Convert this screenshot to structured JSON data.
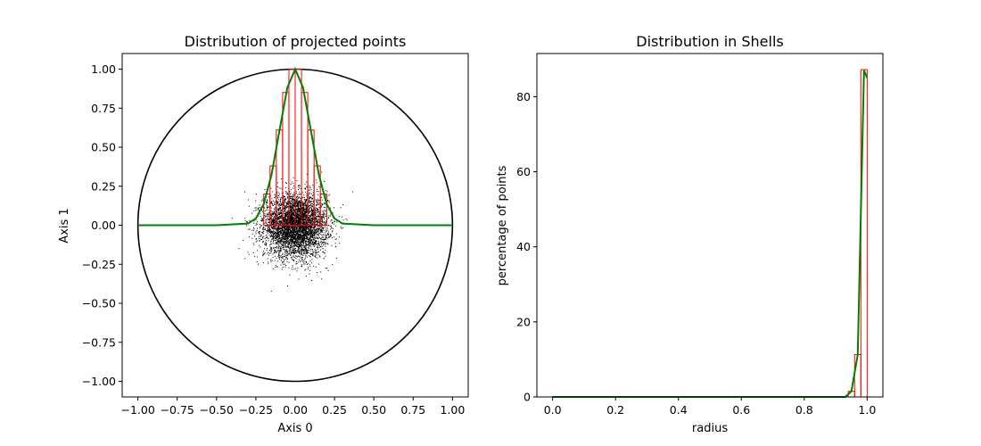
{
  "chart_data": [
    {
      "type": "scatter",
      "title": "Distribution of projected points",
      "xlabel": "Axis 0",
      "ylabel": "Axis 1",
      "xlim": [
        -1.1,
        1.1
      ],
      "ylim": [
        -1.1,
        1.1
      ],
      "xticks": [
        "−1.00",
        "−0.75",
        "−0.50",
        "−0.25",
        "0.00",
        "0.25",
        "0.50",
        "0.75",
        "1.00"
      ],
      "yticks": [
        "−1.00",
        "−0.75",
        "−0.50",
        "−0.25",
        "0.00",
        "0.25",
        "0.50",
        "0.75",
        "1.00"
      ],
      "grid": false,
      "colors": {
        "points": "#000000",
        "circle": "#000000",
        "histogram": "#ff0000",
        "density": "#008000"
      },
      "circle": {
        "center": [
          0,
          0
        ],
        "radius": 1.0
      },
      "scatter_cloud": {
        "center": [
          0,
          0
        ],
        "std": 0.1,
        "count": 5000
      },
      "histogram": {
        "bin_edges": [
          -0.2,
          -0.16,
          -0.12,
          -0.08,
          -0.04,
          0.0,
          0.04,
          0.08,
          0.12,
          0.16,
          0.2
        ],
        "heights": [
          0.2,
          0.38,
          0.61,
          0.85,
          1.0,
          1.0,
          0.85,
          0.61,
          0.38,
          0.2
        ]
      },
      "density_curve": {
        "x": [
          -1.0,
          -0.5,
          -0.3,
          -0.25,
          -0.2,
          -0.15,
          -0.1,
          -0.05,
          0.0,
          0.05,
          0.1,
          0.15,
          0.2,
          0.25,
          0.3,
          0.5,
          1.0
        ],
        "y": [
          0.0,
          0.0,
          0.011,
          0.044,
          0.135,
          0.325,
          0.607,
          0.882,
          1.0,
          0.882,
          0.607,
          0.325,
          0.135,
          0.044,
          0.011,
          0.0,
          0.0
        ]
      }
    },
    {
      "type": "bar",
      "title": "Distribution in Shells",
      "xlabel": "radius",
      "ylabel": "percentage of points",
      "xlim": [
        -0.05,
        1.05
      ],
      "ylim": [
        0,
        91.5
      ],
      "xticks": [
        "0.0",
        "0.2",
        "0.4",
        "0.6",
        "0.8",
        "1.0"
      ],
      "yticks": [
        "0",
        "20",
        "40",
        "60",
        "80"
      ],
      "grid": false,
      "colors": {
        "histogram": "#ff0000",
        "curve": "#008000"
      },
      "histogram": {
        "bin_edges": [
          0.0,
          0.94,
          0.96,
          0.98,
          1.0
        ],
        "heights": [
          0.0,
          1.5,
          11.3,
          87.2
        ]
      },
      "curve": {
        "x": [
          0.0,
          0.93,
          0.95,
          0.97,
          0.99,
          1.0
        ],
        "y": [
          0.0,
          0.0,
          1.5,
          11.3,
          87.0,
          85.0
        ]
      }
    }
  ]
}
